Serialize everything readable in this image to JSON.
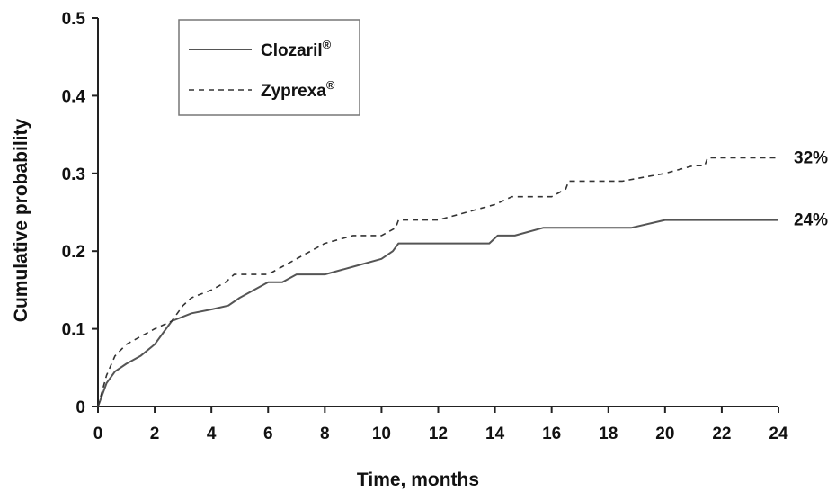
{
  "chart_data": {
    "type": "line",
    "xlabel": "Time, months",
    "ylabel": "Cumulative probability",
    "xlim": [
      0,
      24
    ],
    "ylim": [
      0,
      0.5
    ],
    "xticks": [
      "0",
      "2",
      "4",
      "6",
      "8",
      "10",
      "12",
      "14",
      "16",
      "18",
      "20",
      "22",
      "24"
    ],
    "yticks": [
      "0",
      "0.1",
      "0.2",
      "0.3",
      "0.4",
      "0.5"
    ],
    "grid": false,
    "legend_position": "top-left",
    "series": [
      {
        "name": "Clozaril",
        "name_sup": "®",
        "style": "solid",
        "color": "#555555",
        "end_label": "24%",
        "points": [
          [
            0,
            0
          ],
          [
            0.3,
            0.03
          ],
          [
            0.6,
            0.045
          ],
          [
            1,
            0.055
          ],
          [
            1.5,
            0.065
          ],
          [
            2,
            0.08
          ],
          [
            2.6,
            0.11
          ],
          [
            3.3,
            0.12
          ],
          [
            4,
            0.125
          ],
          [
            4.6,
            0.13
          ],
          [
            5,
            0.14
          ],
          [
            6,
            0.16
          ],
          [
            6.5,
            0.16
          ],
          [
            7,
            0.17
          ],
          [
            8,
            0.17
          ],
          [
            9,
            0.18
          ],
          [
            10,
            0.19
          ],
          [
            10.4,
            0.2
          ],
          [
            10.6,
            0.21
          ],
          [
            13.8,
            0.21
          ],
          [
            14.1,
            0.22
          ],
          [
            14.7,
            0.22
          ],
          [
            15.7,
            0.23
          ],
          [
            18.8,
            0.23
          ],
          [
            20,
            0.24
          ],
          [
            24,
            0.24
          ]
        ]
      },
      {
        "name": "Zyprexa",
        "name_sup": "®",
        "style": "dashed",
        "color": "#333333",
        "end_label": "32%",
        "points": [
          [
            0,
            0
          ],
          [
            0.3,
            0.04
          ],
          [
            0.6,
            0.065
          ],
          [
            1,
            0.08
          ],
          [
            1.5,
            0.09
          ],
          [
            2,
            0.1
          ],
          [
            2.6,
            0.11
          ],
          [
            3,
            0.13
          ],
          [
            3.3,
            0.14
          ],
          [
            4,
            0.15
          ],
          [
            4.5,
            0.16
          ],
          [
            4.8,
            0.17
          ],
          [
            6,
            0.17
          ],
          [
            6.5,
            0.18
          ],
          [
            7,
            0.19
          ],
          [
            7.5,
            0.2
          ],
          [
            8,
            0.21
          ],
          [
            9,
            0.22
          ],
          [
            10,
            0.22
          ],
          [
            10.5,
            0.23
          ],
          [
            10.6,
            0.24
          ],
          [
            12,
            0.24
          ],
          [
            13,
            0.25
          ],
          [
            14,
            0.26
          ],
          [
            14.6,
            0.27
          ],
          [
            16,
            0.27
          ],
          [
            16.5,
            0.28
          ],
          [
            16.6,
            0.29
          ],
          [
            18.5,
            0.29
          ],
          [
            20,
            0.3
          ],
          [
            21,
            0.31
          ],
          [
            21.4,
            0.31
          ],
          [
            21.5,
            0.32
          ],
          [
            24,
            0.32
          ]
        ]
      }
    ]
  }
}
